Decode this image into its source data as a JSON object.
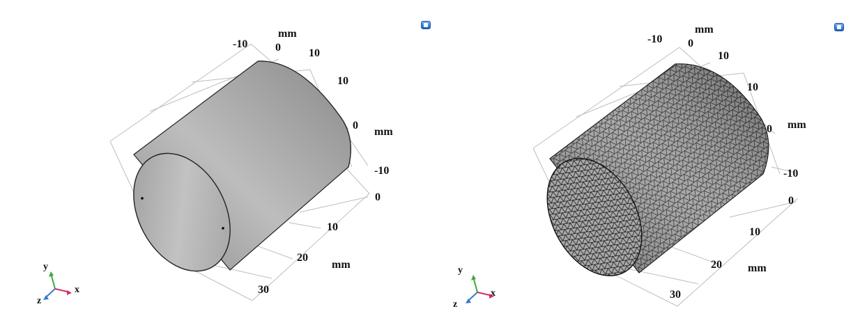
{
  "panels": [
    {
      "name": "geometry",
      "labels": {
        "y_unit": "mm",
        "y_m10": "-10",
        "y_0": "0",
        "y_10": "10",
        "z_10": "10",
        "z_0": "0",
        "z_unit": "mm",
        "z_m10": "-10",
        "x_0": "0",
        "x_10": "10",
        "x_20": "20",
        "x_unit": "mm",
        "x_30": "30"
      },
      "triad": {
        "x": "x",
        "y": "y",
        "z": "z"
      }
    },
    {
      "name": "mesh",
      "labels": {
        "y_unit": "mm",
        "y_m10": "-10",
        "y_0": "0",
        "y_10": "10",
        "z_10": "10",
        "z_0": "0",
        "z_unit": "mm",
        "z_m10": "-10",
        "x_0": "0",
        "x_10": "10",
        "x_20": "20",
        "x_unit": "mm",
        "x_30": "30"
      },
      "triad": {
        "x": "x",
        "y": "y",
        "z": "z"
      }
    }
  ],
  "colors": {
    "surface_light": "#b2b2b2",
    "surface_dark": "#8c8c8c",
    "grid": "#b9b9b9",
    "axis_x": "#d6305f",
    "axis_y": "#3ea83e",
    "axis_z": "#3a78c8"
  }
}
